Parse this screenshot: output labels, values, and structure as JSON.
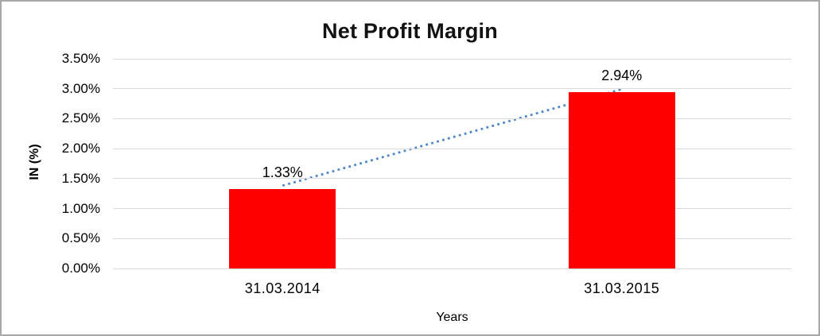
{
  "chart_data": {
    "type": "bar",
    "title": "Net Profit Margin",
    "categories": [
      "31.03.2014",
      "31.03.2015"
    ],
    "values": [
      1.33,
      2.94
    ],
    "data_labels": [
      "1.33%",
      "2.94%"
    ],
    "xlabel": "Years",
    "ylabel": "IN (%)",
    "ylim": [
      0,
      3.5
    ],
    "ytick_step": 0.5,
    "ytick_labels": [
      "0.00%",
      "0.50%",
      "1.00%",
      "1.50%",
      "2.00%",
      "2.50%",
      "3.00%",
      "3.50%"
    ],
    "gridlines": true,
    "legend": "none",
    "bar_color": "#ff0000",
    "trendline": {
      "type": "linear",
      "style": "dotted",
      "color": "#4e86c8"
    }
  }
}
